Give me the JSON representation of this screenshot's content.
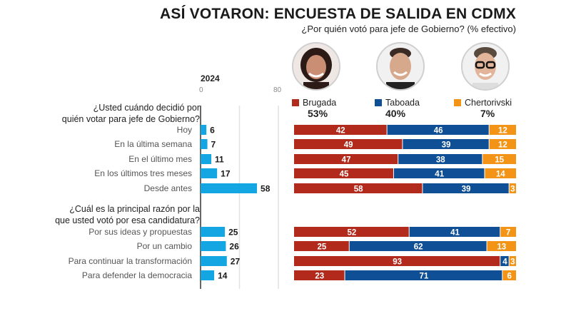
{
  "header": {
    "title": "ASÍ VOTARON: ENCUESTA DE SALIDA EN CDMX",
    "subtitle": "¿Por quién votó para jefe de Gobierno? (% efectivo)"
  },
  "candidates": [
    {
      "name": "Brugada",
      "pct": "53%",
      "color": "#b22a1c"
    },
    {
      "name": "Taboada",
      "pct": "40%",
      "color": "#0f4f95"
    },
    {
      "name": "Chertorivski",
      "pct": "7%",
      "color": "#f39417"
    }
  ],
  "chart_data": [
    {
      "type": "bar",
      "orientation": "horizontal",
      "title": "2024",
      "xlim": [
        0,
        80
      ],
      "ticks": [
        "0",
        "80"
      ],
      "grid": true,
      "color": "#13a6e3",
      "groups": [
        {
          "question": [
            "¿Usted cuándo decidió por",
            "quién votar para jefe de Gobierno?"
          ],
          "categories": [
            "Hoy",
            "En la última semana",
            "En el último mes",
            "En los últimos tres meses",
            "Desde antes"
          ],
          "values": [
            6,
            7,
            11,
            17,
            58
          ]
        },
        {
          "question": [
            "¿Cuál es la principal razón por la",
            "que usted votó por esa candidatura?"
          ],
          "categories": [
            "Por sus ideas y propuestas",
            "Por un cambio",
            "Para continuar la transformación",
            "Para defender la democracia"
          ],
          "values": [
            25,
            26,
            27,
            14
          ]
        }
      ]
    },
    {
      "type": "bar",
      "orientation": "horizontal",
      "stacked": "100%",
      "title": "¿Por quién votó para jefe de Gobierno? (% efectivo)",
      "series": [
        {
          "name": "Brugada",
          "color": "#b22a1c",
          "values": [
            42,
            49,
            47,
            45,
            58,
            52,
            25,
            93,
            23
          ]
        },
        {
          "name": "Taboada",
          "color": "#0f4f95",
          "values": [
            46,
            39,
            38,
            41,
            39,
            41,
            62,
            4,
            71
          ]
        },
        {
          "name": "Chertorivski",
          "color": "#f39417",
          "values": [
            12,
            12,
            15,
            14,
            3,
            7,
            13,
            3,
            6
          ]
        }
      ],
      "categories": [
        "Hoy",
        "En la última semana",
        "En el último mes",
        "En los últimos tres meses",
        "Desde antes",
        "Por sus ideas y propuestas",
        "Por un cambio",
        "Para continuar la transformación",
        "Para defender la democracia"
      ]
    }
  ]
}
